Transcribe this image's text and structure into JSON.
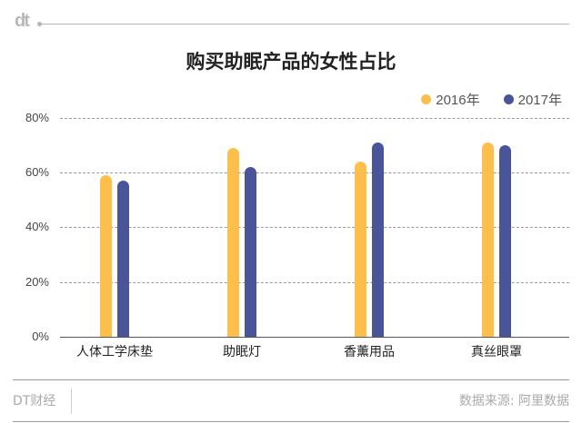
{
  "header": {
    "logo": "dt"
  },
  "chart_data": {
    "type": "bar",
    "title": "购买助眠产品的女性占比",
    "categories": [
      "人体工学床垫",
      "助眠灯",
      "香薰用品",
      "真丝眼罩"
    ],
    "series": [
      {
        "name": "2016年",
        "color": "#FCBF4B",
        "values": [
          59,
          69,
          64,
          71
        ]
      },
      {
        "name": "2017年",
        "color": "#4A5499",
        "values": [
          57,
          62,
          71,
          70
        ]
      }
    ],
    "xlabel": "",
    "ylabel": "",
    "ylim": [
      0,
      80
    ],
    "yticks": [
      "0%",
      "20%",
      "40%",
      "60%",
      "80%"
    ],
    "grid": true,
    "legend_position": "top-right"
  },
  "footer": {
    "brand": "DT财经",
    "source": "数据来源: 阿里数据"
  }
}
